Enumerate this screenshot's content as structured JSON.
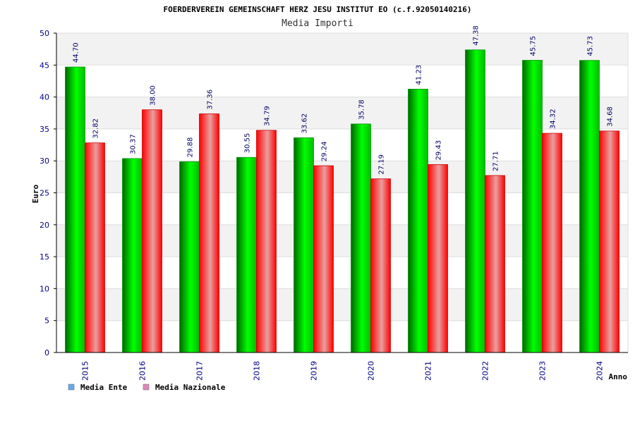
{
  "chart_data": {
    "type": "bar",
    "title": "FOERDERVEREIN GEMEINSCHAFT HERZ JESU INSTITUT EO (c.f.92050140216)",
    "subtitle": "Media Importi",
    "xlabel": "Anno",
    "ylabel": "Euro",
    "ylim": [
      0,
      50
    ],
    "yticks": [
      "0",
      "5",
      "10",
      "15",
      "20",
      "25",
      "30",
      "35",
      "40",
      "45",
      "50"
    ],
    "categories": [
      "2015",
      "2016",
      "2017",
      "2018",
      "2019",
      "2020",
      "2021",
      "2022",
      "2023",
      "2024"
    ],
    "series": [
      {
        "name": "Media Ente",
        "color": "#00cc00",
        "values": [
          44.7,
          30.37,
          29.88,
          30.55,
          33.62,
          35.78,
          41.23,
          47.38,
          45.75,
          45.73
        ],
        "labels": [
          "44.70",
          "30.37",
          "29.88",
          "30.55",
          "33.62",
          "35.78",
          "41.23",
          "47.38",
          "45.75",
          "45.73"
        ]
      },
      {
        "name": "Media Nazionale",
        "color": "#ff0000",
        "values": [
          32.82,
          38.0,
          37.36,
          34.79,
          29.24,
          27.19,
          29.43,
          27.71,
          34.32,
          34.68
        ],
        "labels": [
          "32.82",
          "38.00",
          "37.36",
          "34.79",
          "29.24",
          "27.19",
          "29.43",
          "27.71",
          "34.32",
          "34.68"
        ]
      }
    ],
    "legend": {
      "placement": "bottom-left",
      "items": [
        {
          "label": "Media Ente",
          "swatch": "#66aaee"
        },
        {
          "label": "Media Nazionale",
          "swatch": "#dd88bb"
        }
      ]
    },
    "grid": true
  }
}
